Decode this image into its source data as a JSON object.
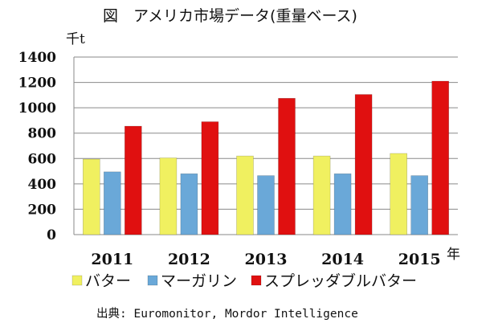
{
  "chart_data": {
    "type": "bar",
    "title": "図　アメリカ市場データ(重量ベース)",
    "y_unit": "千t",
    "x_unit": "年",
    "categories": [
      "2011",
      "2012",
      "2013",
      "2014",
      "2015"
    ],
    "series": [
      {
        "name": "バター",
        "color": "#f0f060",
        "values": [
          595,
          605,
          620,
          620,
          640
        ]
      },
      {
        "name": "マーガリン",
        "color": "#6aa8d8",
        "values": [
          495,
          480,
          465,
          480,
          465
        ]
      },
      {
        "name": "スプレッダブルバター",
        "color": "#e01010",
        "values": [
          855,
          890,
          1075,
          1105,
          1210
        ]
      }
    ],
    "ylim": [
      0,
      1400
    ],
    "yticks": [
      "0",
      "200",
      "400",
      "600",
      "800",
      "1000",
      "1200",
      "1400"
    ],
    "grid": true,
    "legend_position": "bottom",
    "source": "出典: Euromonitor, Mordor Intelligence"
  }
}
